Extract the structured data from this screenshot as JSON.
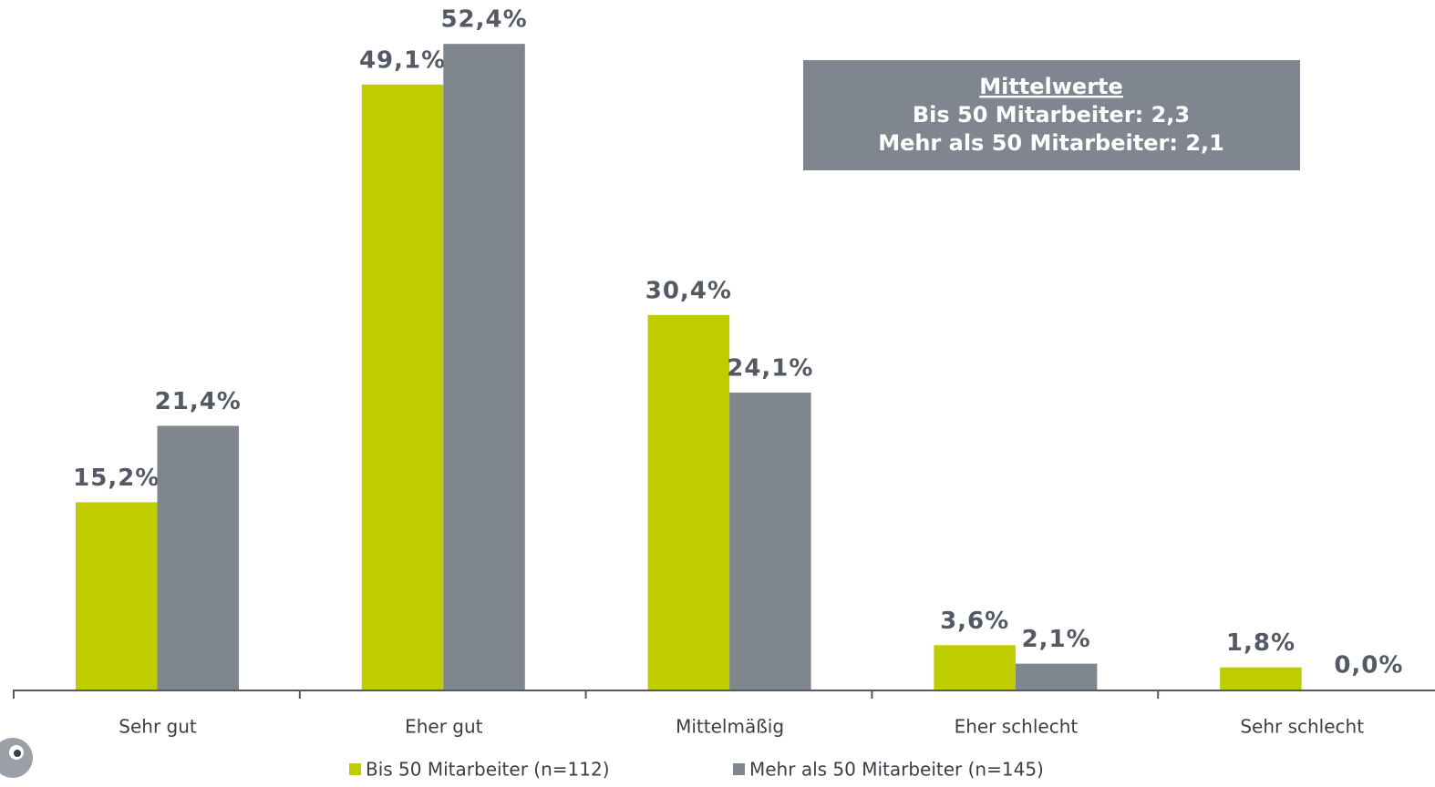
{
  "chart_data": {
    "type": "bar",
    "categories": [
      "Sehr gut",
      "Eher gut",
      "Mittelmäßig",
      "Eher schlecht",
      "Sehr schlecht"
    ],
    "series": [
      {
        "name": "Bis 50 Mitarbeiter (n=112)",
        "color": "#bfcc00",
        "values": [
          15.2,
          49.1,
          30.4,
          3.6,
          1.8
        ],
        "value_labels": [
          "15,2%",
          "49,1%",
          "30,4%",
          "3,6%",
          "1,8%"
        ]
      },
      {
        "name": "Mehr als 50 Mitarbeiter (n=145)",
        "color": "#80868e",
        "values": [
          21.4,
          52.4,
          24.1,
          2.1,
          0.0
        ],
        "value_labels": [
          "21,4%",
          "52,4%",
          "24,1%",
          "2,1%",
          "0,0%"
        ]
      }
    ],
    "ylim": [
      0,
      55
    ],
    "annotation": {
      "title": "Mittelwerte",
      "lines": [
        "Bis 50 Mitarbeiter: 2,3",
        "Mehr als 50 Mitarbeiter: 2,1"
      ]
    }
  }
}
